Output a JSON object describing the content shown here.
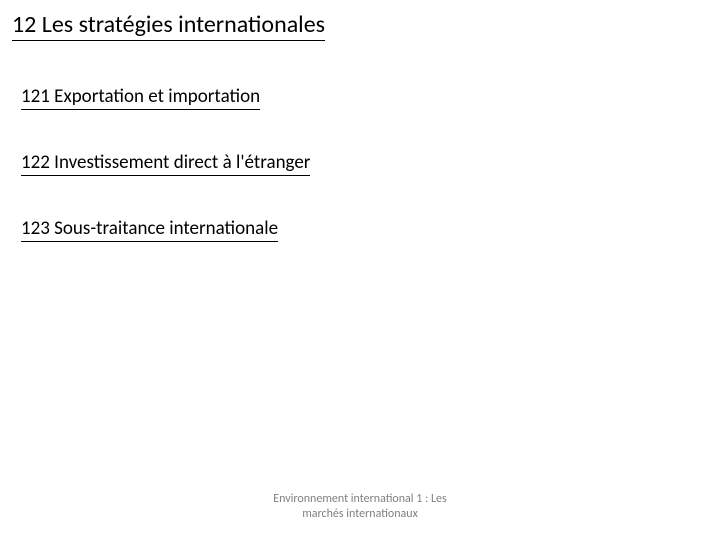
{
  "slide": {
    "title": "12 Les stratégies internationales",
    "items": [
      "121 Exportation et importation",
      "122 Investissement direct à l'étranger",
      "123 Sous-traitance internationale"
    ],
    "footer_line1": "Environnement international 1 : Les",
    "footer_line2": "marchés internationaux"
  },
  "style": {
    "background_color": "#ffffff",
    "text_color": "#000000",
    "footer_color": "#808080",
    "title_fontsize": 24,
    "item_fontsize": 19,
    "footer_fontsize": 12,
    "underline_color": "#000000"
  }
}
